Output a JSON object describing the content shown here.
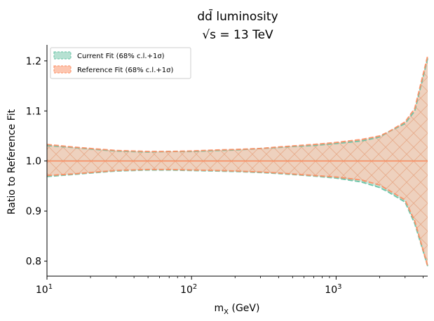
{
  "chart_data": {
    "type": "area",
    "title_line1": "dd̄ luminosity",
    "title_line2": "√s = 13 TeV",
    "xlabel": "m_X (GeV)",
    "ylabel": "Ratio to Reference Fit",
    "xscale": "log",
    "xlim": [
      10,
      4300
    ],
    "ylim": [
      0.77,
      1.232
    ],
    "x_ticks": [
      {
        "value": 10,
        "base": "10",
        "exp": "1"
      },
      {
        "value": 100,
        "base": "10",
        "exp": "2"
      },
      {
        "value": 1000,
        "base": "10",
        "exp": "3"
      }
    ],
    "y_ticks": [
      {
        "value": 0.8,
        "label": "0.8"
      },
      {
        "value": 0.9,
        "label": "0.9"
      },
      {
        "value": 1.0,
        "label": "1.0"
      },
      {
        "value": 1.1,
        "label": "1.1"
      },
      {
        "value": 1.2,
        "label": "1.2"
      }
    ],
    "grid": false,
    "legend_position": "top-left",
    "x": [
      10,
      15,
      20,
      30,
      50,
      70,
      100,
      150,
      200,
      300,
      400,
      500,
      700,
      1000,
      1500,
      2000,
      2300,
      3000,
      3500,
      4300
    ],
    "series": [
      {
        "name": "Current Fit (68% c.l.+1σ)",
        "color": "#66c2a5",
        "fill": "#b6e1d2",
        "central": [
          1.0,
          1.0,
          1.0,
          1.0,
          1.0,
          1.0,
          1.0,
          1.0,
          1.0,
          1.0,
          1.0,
          1.0,
          1.0,
          1.0,
          1.0,
          1.0,
          1.0,
          1.0,
          1.0,
          1.0
        ],
        "upper": [
          1.031,
          1.027,
          1.024,
          1.02,
          1.018,
          1.019,
          1.019,
          1.021,
          1.022,
          1.025,
          1.027,
          1.029,
          1.031,
          1.035,
          1.04,
          1.048,
          1.058,
          1.075,
          1.1,
          1.205
        ],
        "lower": [
          0.969,
          0.973,
          0.976,
          0.98,
          0.982,
          0.982,
          0.981,
          0.98,
          0.979,
          0.977,
          0.975,
          0.973,
          0.97,
          0.966,
          0.958,
          0.947,
          0.938,
          0.918,
          0.875,
          0.79
        ]
      },
      {
        "name": "Reference Fit (68% c.l.+1σ)",
        "color": "#fc8d62",
        "fill": "#fdc6b0",
        "central": [
          1.0,
          1.0,
          1.0,
          1.0,
          1.0,
          1.0,
          1.0,
          1.0,
          1.0,
          1.0,
          1.0,
          1.0,
          1.0,
          1.0,
          1.0,
          1.0,
          1.0,
          1.0,
          1.0,
          1.0
        ],
        "upper": [
          1.033,
          1.028,
          1.025,
          1.021,
          1.019,
          1.019,
          1.02,
          1.022,
          1.023,
          1.025,
          1.028,
          1.03,
          1.033,
          1.037,
          1.043,
          1.05,
          1.058,
          1.078,
          1.105,
          1.21
        ],
        "lower": [
          0.971,
          0.974,
          0.977,
          0.981,
          0.983,
          0.983,
          0.982,
          0.981,
          0.98,
          0.978,
          0.976,
          0.974,
          0.971,
          0.968,
          0.962,
          0.952,
          0.942,
          0.922,
          0.88,
          0.79
        ]
      }
    ]
  }
}
